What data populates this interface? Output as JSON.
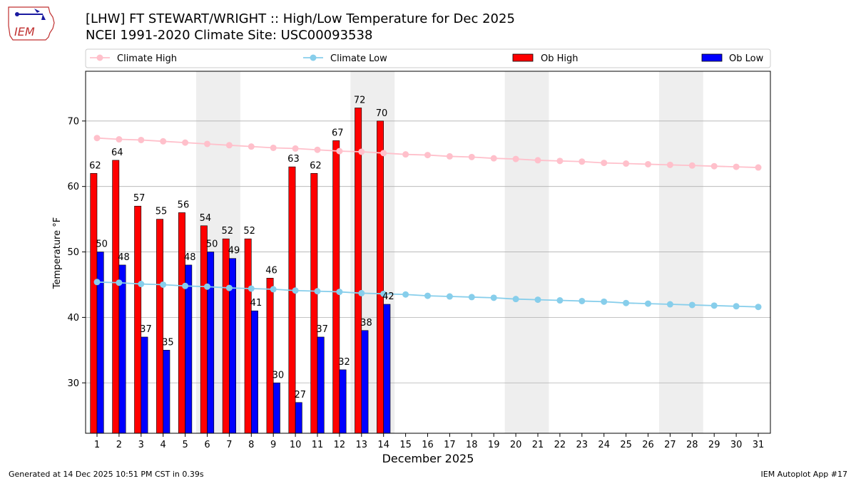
{
  "header": {
    "title_line1": "[LHW] FT STEWART/WRIGHT :: High/Low Temperature for Dec 2025",
    "title_line2": "NCEI 1991-2020 Climate Site: USC00093538"
  },
  "logo": {
    "text": "IEM",
    "icon": "iem-iowa-logo"
  },
  "footer": {
    "generated": "Generated at 14 Dec 2025 10:51 PM CST in 0.39s",
    "app": "IEM Autoplot App #17"
  },
  "colors": {
    "climate_high": "#ffc0cb",
    "climate_low": "#87ceeb",
    "ob_high": "#ff0000",
    "ob_low": "#0000ff",
    "weekend_shade": "#eeeeee",
    "grid": "#b0b0b0"
  },
  "chart_data": {
    "type": "bar",
    "xlabel": "December 2025",
    "ylabel": "Temperature °F",
    "ylim": [
      22.3,
      77.6
    ],
    "yticks": [
      30,
      40,
      50,
      60,
      70
    ],
    "grid": "horizontal",
    "legend_placement": "top",
    "categories": [
      "1",
      "2",
      "3",
      "4",
      "5",
      "6",
      "7",
      "8",
      "9",
      "10",
      "11",
      "12",
      "13",
      "14",
      "15",
      "16",
      "17",
      "18",
      "19",
      "20",
      "21",
      "22",
      "23",
      "24",
      "25",
      "26",
      "27",
      "28",
      "29",
      "30",
      "31"
    ],
    "weekend_shaded_days": [
      [
        6,
        7
      ],
      [
        13,
        14
      ],
      [
        20,
        21
      ],
      [
        27,
        28
      ]
    ],
    "series": [
      {
        "name": "Climate High",
        "kind": "line",
        "values": [
          67.4,
          67.2,
          67.1,
          66.9,
          66.7,
          66.5,
          66.3,
          66.1,
          65.9,
          65.8,
          65.6,
          65.4,
          65.3,
          65.1,
          64.9,
          64.8,
          64.6,
          64.5,
          64.3,
          64.2,
          64.0,
          63.9,
          63.8,
          63.6,
          63.5,
          63.4,
          63.3,
          63.2,
          63.1,
          63.0,
          62.9
        ]
      },
      {
        "name": "Climate Low",
        "kind": "line",
        "values": [
          45.4,
          45.3,
          45.1,
          45.0,
          44.8,
          44.7,
          44.5,
          44.4,
          44.3,
          44.1,
          44.0,
          43.9,
          43.7,
          43.6,
          43.5,
          43.3,
          43.2,
          43.1,
          43.0,
          42.8,
          42.7,
          42.6,
          42.5,
          42.4,
          42.2,
          42.1,
          42.0,
          41.9,
          41.8,
          41.7,
          41.6
        ]
      },
      {
        "name": "Ob High",
        "kind": "bar",
        "values": [
          62,
          64,
          57,
          55,
          56,
          54,
          52,
          52,
          46,
          63,
          62,
          67,
          72,
          70,
          null,
          null,
          null,
          null,
          null,
          null,
          null,
          null,
          null,
          null,
          null,
          null,
          null,
          null,
          null,
          null,
          null
        ],
        "labels": [
          "62",
          "64",
          "57",
          "55",
          "56",
          "54",
          "52",
          "52",
          "46",
          "63",
          "62",
          "67",
          "72",
          "70"
        ]
      },
      {
        "name": "Ob Low",
        "kind": "bar",
        "values": [
          50,
          48,
          37,
          35,
          48,
          50,
          49,
          41,
          30,
          27,
          37,
          32,
          38,
          42,
          null,
          null,
          null,
          null,
          null,
          null,
          null,
          null,
          null,
          null,
          null,
          null,
          null,
          null,
          null,
          null,
          null
        ],
        "labels": [
          "50",
          "48",
          "37",
          "35",
          "48",
          "50",
          "49",
          "41",
          "30",
          "27",
          "37",
          "32",
          "38",
          "42"
        ]
      }
    ]
  }
}
